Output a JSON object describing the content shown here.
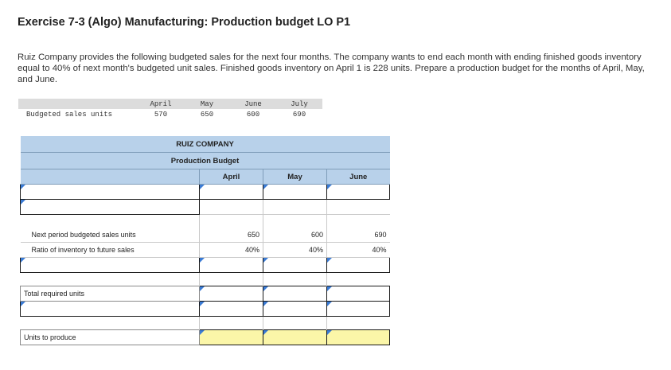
{
  "title": "Exercise 7-3 (Algo) Manufacturing: Production budget LO P1",
  "description": "Ruiz Company provides the following budgeted sales for the next four months. The company wants to end each month with ending finished goods inventory equal to 40% of next month's budgeted unit sales. Finished goods inventory on April 1 is 228 units. Prepare a production budget for the months of April, May, and June.",
  "sales": {
    "row_label": "Budgeted sales units",
    "months": [
      "April",
      "May",
      "June",
      "July"
    ],
    "values": [
      "570",
      "650",
      "600",
      "690"
    ]
  },
  "budget": {
    "company": "RUIZ COMPANY",
    "subtitle": "Production Budget",
    "columns": [
      "April",
      "May",
      "June"
    ],
    "rows": {
      "next_sales": {
        "label": "Next period budgeted sales units",
        "values": [
          "650",
          "600",
          "690"
        ]
      },
      "ratio": {
        "label": "Ratio of inventory to future sales",
        "values": [
          "40%",
          "40%",
          "40%"
        ]
      },
      "total_required": {
        "label": "Total required units"
      },
      "units_to_produce": {
        "label": "Units to produce"
      }
    }
  },
  "colors": {
    "header_blue": "#b8d1ea",
    "input_yellow": "#fbf6a8",
    "input_marker": "#3a7bd5"
  }
}
